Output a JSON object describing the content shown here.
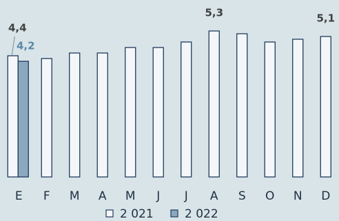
{
  "chart_data": {
    "type": "bar",
    "categories": [
      "E",
      "F",
      "M",
      "A",
      "M",
      "J",
      "J",
      "A",
      "S",
      "O",
      "N",
      "D"
    ],
    "series": [
      {
        "name": "2 021",
        "color": "#f4f7fa",
        "edge": "#1f3a5a",
        "values": [
          4.4,
          4.3,
          4.5,
          4.5,
          4.7,
          4.7,
          4.9,
          5.3,
          5.2,
          4.9,
          5.0,
          5.1
        ],
        "value_labels": [
          "4,4",
          null,
          null,
          null,
          null,
          null,
          null,
          "5,3",
          null,
          null,
          null,
          "5,1"
        ]
      },
      {
        "name": "2 022",
        "color": "#8aa9bf",
        "edge": "#1f3a5a",
        "values": [
          4.2,
          null,
          null,
          null,
          null,
          null,
          null,
          null,
          null,
          null,
          null,
          null
        ],
        "value_labels": [
          "4,2",
          null,
          null,
          null,
          null,
          null,
          null,
          null,
          null,
          null,
          null,
          null
        ]
      }
    ],
    "ylim": [
      0,
      6.4
    ]
  }
}
